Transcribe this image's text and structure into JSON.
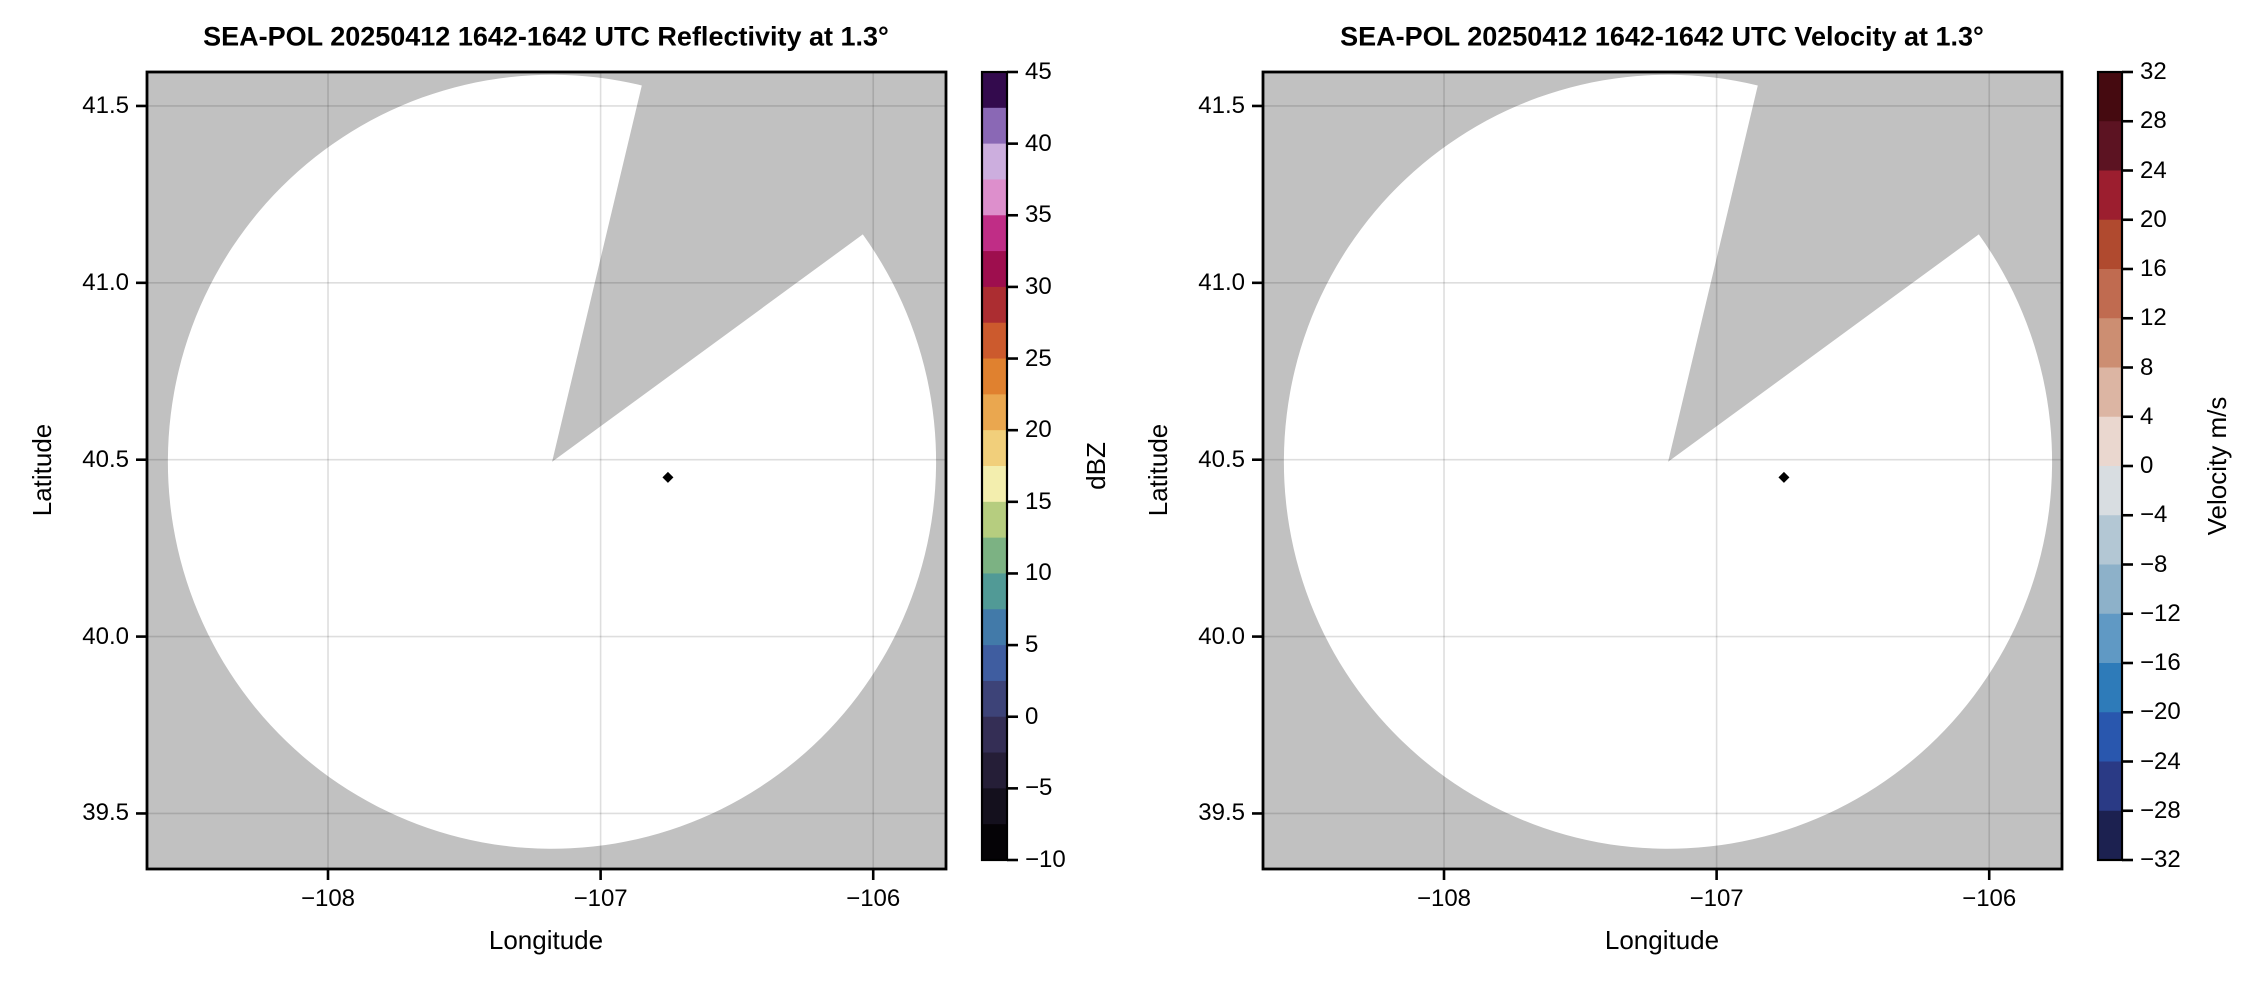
{
  "figure": {
    "background": "#ffffff",
    "description": "Two-panel SEA-POL radar PPI display: reflectivity (left) and radial velocity (right)"
  },
  "chart_data": [
    {
      "type": "radar_ppi",
      "title": "SEA-POL 20250412 1642-1642 UTC Reflectivity at 1.3°",
      "field": "Reflectivity",
      "elevation_deg": 1.3,
      "xlabel": "Longitude",
      "ylabel": "Latitude",
      "xlim": [
        -108.664,
        -105.733
      ],
      "ylim": [
        39.343,
        41.596
      ],
      "xticks": [
        -108,
        -107,
        -106
      ],
      "xtick_labels": [
        "−108",
        "−107",
        "−106"
      ],
      "yticks": [
        41.5,
        41.0,
        40.5,
        40.0,
        39.5
      ],
      "ytick_labels": [
        "41.5",
        "41.0",
        "40.5",
        "40.0",
        "39.5"
      ],
      "grid": true,
      "radar_site": {
        "lon": -107.178,
        "lat": 40.494
      },
      "scan_radius_deg": {
        "lon": 1.409,
        "lat": 1.094
      },
      "nodata_sector_azimuth_deg": [
        13.5,
        54.0
      ],
      "markers": [
        {
          "lon": -106.753,
          "lat": 40.45,
          "shape": "diamond",
          "color": "#000000"
        }
      ],
      "displayed_echoes": "none (scan area rendered empty/white except single dark gate near radar)",
      "colors": {
        "nodata_fill": "#c1c1c1",
        "scan_fill": "#ffffff",
        "grid": "rgba(0,0,0,0.13)",
        "frame": "#000000"
      },
      "colorbar": {
        "label": "dBZ",
        "min": -10,
        "max": 45,
        "ticks": [
          45,
          40,
          35,
          30,
          25,
          20,
          15,
          10,
          5,
          0,
          -5,
          -10
        ],
        "tick_labels": [
          "45",
          "40",
          "35",
          "30",
          "25",
          "20",
          "15",
          "10",
          "5",
          "0",
          "−5",
          "−10"
        ],
        "segments_top_to_bottom": [
          {
            "hi": 45.0,
            "lo": 42.5,
            "color": "#330a4d"
          },
          {
            "hi": 42.5,
            "lo": 40.0,
            "color": "#8a68b5"
          },
          {
            "hi": 40.0,
            "lo": 37.5,
            "color": "#ccaede"
          },
          {
            "hi": 37.5,
            "lo": 35.0,
            "color": "#dd8fcc"
          },
          {
            "hi": 35.0,
            "lo": 32.5,
            "color": "#c02d86"
          },
          {
            "hi": 32.5,
            "lo": 30.0,
            "color": "#9e0e4e"
          },
          {
            "hi": 30.0,
            "lo": 27.5,
            "color": "#ac2d31"
          },
          {
            "hi": 27.5,
            "lo": 25.0,
            "color": "#cc5a2d"
          },
          {
            "hi": 25.0,
            "lo": 22.5,
            "color": "#e0812f"
          },
          {
            "hi": 22.5,
            "lo": 20.0,
            "color": "#eaa74f"
          },
          {
            "hi": 20.0,
            "lo": 17.5,
            "color": "#f1cf7b"
          },
          {
            "hi": 17.5,
            "lo": 15.0,
            "color": "#f3eeae"
          },
          {
            "hi": 15.0,
            "lo": 12.5,
            "color": "#b6cd7f"
          },
          {
            "hi": 12.5,
            "lo": 10.0,
            "color": "#7cb283"
          },
          {
            "hi": 10.0,
            "lo": 7.5,
            "color": "#519a96"
          },
          {
            "hi": 7.5,
            "lo": 5.0,
            "color": "#427aa9"
          },
          {
            "hi": 5.0,
            "lo": 2.5,
            "color": "#3f5da0"
          },
          {
            "hi": 2.5,
            "lo": 0.0,
            "color": "#3d4378"
          },
          {
            "hi": 0.0,
            "lo": -2.5,
            "color": "#342e55"
          },
          {
            "hi": -2.5,
            "lo": -5.0,
            "color": "#251e37"
          },
          {
            "hi": -5.0,
            "lo": -7.5,
            "color": "#14101d"
          },
          {
            "hi": -7.5,
            "lo": -10.0,
            "color": "#050306"
          }
        ]
      }
    },
    {
      "type": "radar_ppi",
      "title": "SEA-POL 20250412 1642-1642 UTC Velocity at 1.3°",
      "field": "Velocity",
      "elevation_deg": 1.3,
      "xlabel": "Longitude",
      "ylabel": "Latitude",
      "xlim": [
        -108.664,
        -105.733
      ],
      "ylim": [
        39.343,
        41.596
      ],
      "xticks": [
        -108,
        -107,
        -106
      ],
      "xtick_labels": [
        "−108",
        "−107",
        "−106"
      ],
      "yticks": [
        41.5,
        41.0,
        40.5,
        40.0,
        39.5
      ],
      "ytick_labels": [
        "41.5",
        "41.0",
        "40.5",
        "40.0",
        "39.5"
      ],
      "grid": true,
      "radar_site": {
        "lon": -107.178,
        "lat": 40.494
      },
      "scan_radius_deg": {
        "lon": 1.409,
        "lat": 1.094
      },
      "nodata_sector_azimuth_deg": [
        13.5,
        54.0
      ],
      "markers": [
        {
          "lon": -106.753,
          "lat": 40.45,
          "shape": "diamond",
          "color": "#000000"
        }
      ],
      "displayed_echoes": "none (scan area rendered empty/white except single dark gate near radar)",
      "colors": {
        "nodata_fill": "#c1c1c1",
        "scan_fill": "#ffffff",
        "grid": "rgba(0,0,0,0.13)",
        "frame": "#000000"
      },
      "colorbar": {
        "label": "Velocity m/s",
        "min": -32,
        "max": 32,
        "ticks": [
          32,
          28,
          24,
          20,
          16,
          12,
          8,
          4,
          0,
          -4,
          -8,
          -12,
          -16,
          -20,
          -24,
          -28,
          -32
        ],
        "tick_labels": [
          "32",
          "28",
          "24",
          "20",
          "16",
          "12",
          "8",
          "4",
          "0",
          "−4",
          "−8",
          "−12",
          "−16",
          "−20",
          "−24",
          "−28",
          "−32"
        ],
        "segments_top_to_bottom": [
          {
            "hi": 32,
            "lo": 28,
            "color": "#450a10"
          },
          {
            "hi": 28,
            "lo": 24,
            "color": "#5c1322"
          },
          {
            "hi": 24,
            "lo": 20,
            "color": "#9c1e2f"
          },
          {
            "hi": 20,
            "lo": 16,
            "color": "#b04a2f"
          },
          {
            "hi": 16,
            "lo": 12,
            "color": "#c06b50"
          },
          {
            "hi": 12,
            "lo": 8,
            "color": "#cc8e72"
          },
          {
            "hi": 8,
            "lo": 4,
            "color": "#dcb5a3"
          },
          {
            "hi": 4,
            "lo": 0,
            "color": "#ead7cf"
          },
          {
            "hi": 0,
            "lo": -4,
            "color": "#d8dde1"
          },
          {
            "hi": -4,
            "lo": -8,
            "color": "#b3c7d4"
          },
          {
            "hi": -8,
            "lo": -12,
            "color": "#8db1c9"
          },
          {
            "hi": -12,
            "lo": -16,
            "color": "#6099c4"
          },
          {
            "hi": -16,
            "lo": -20,
            "color": "#2e7bb9"
          },
          {
            "hi": -20,
            "lo": -24,
            "color": "#2957ae"
          },
          {
            "hi": -24,
            "lo": -28,
            "color": "#2a3a85"
          },
          {
            "hi": -28,
            "lo": -32,
            "color": "#1c2150"
          }
        ]
      }
    }
  ]
}
